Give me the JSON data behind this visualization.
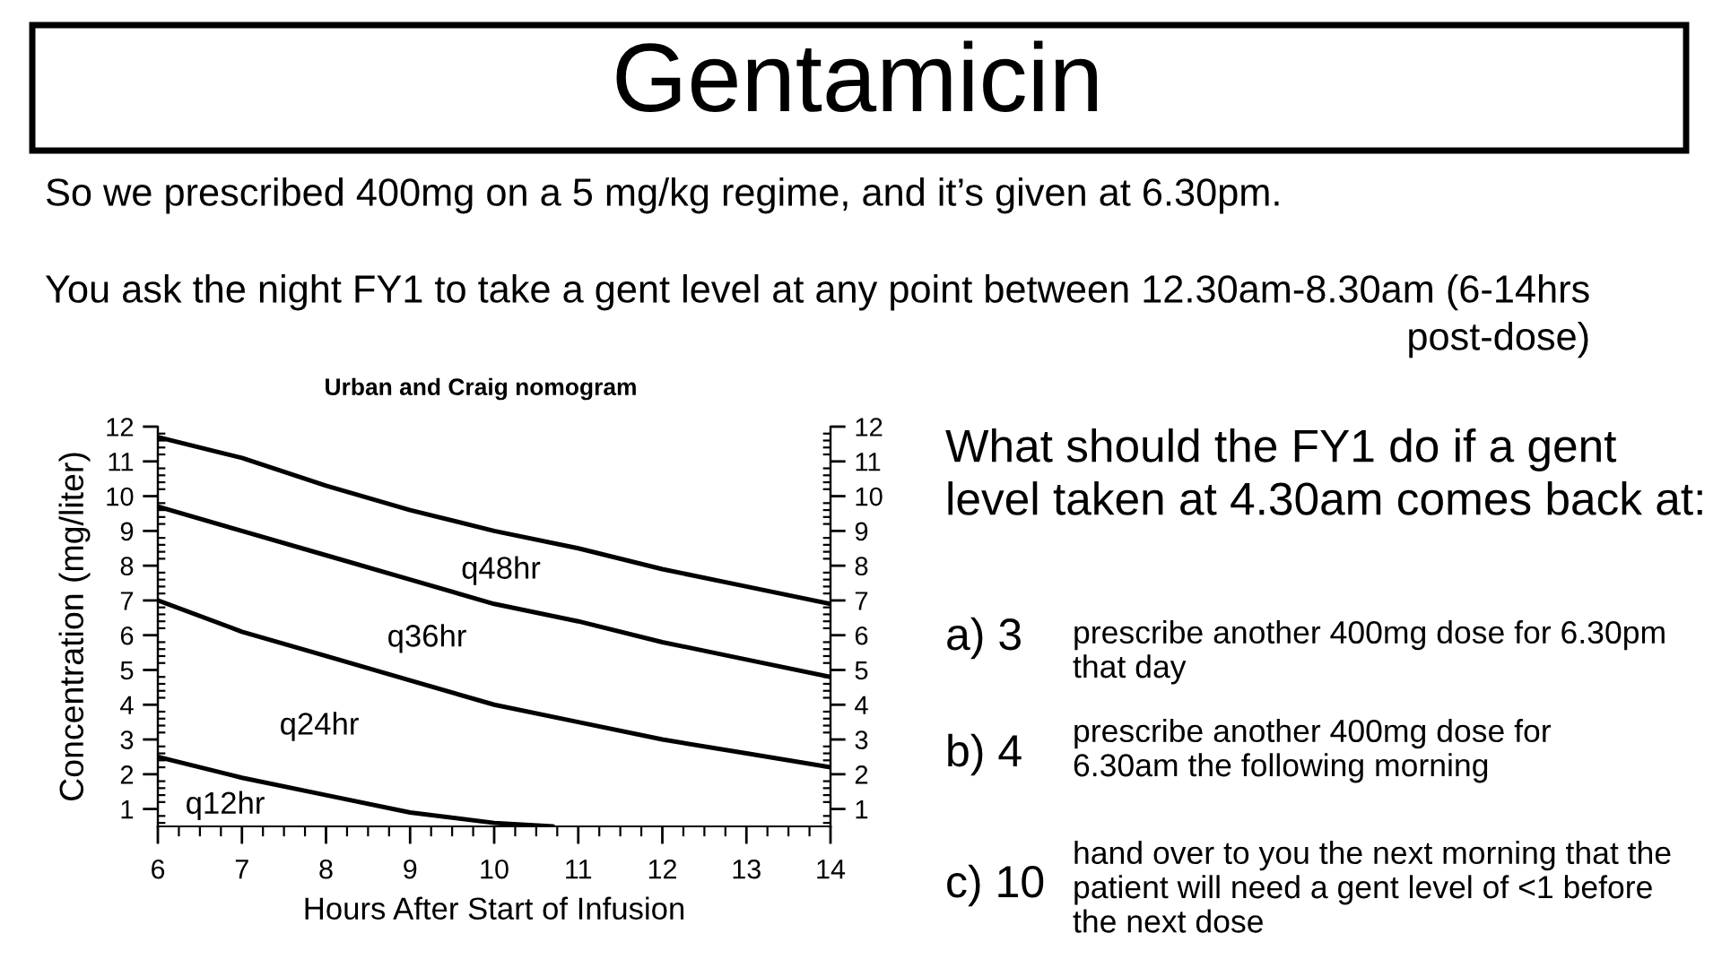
{
  "chart_data": {
    "type": "line",
    "title": "Gentamicin",
    "subtitle": "Urban and Craig nomogram",
    "xlabel": "Hours After Start of Infusion",
    "ylabel": "Concentration (mg/liter)",
    "x": [
      6,
      7,
      8,
      9,
      10,
      11,
      12,
      13,
      14
    ],
    "series": [
      {
        "color": "#000000",
        "values": [
          11.7,
          11.1,
          10.3,
          9.6,
          9.0,
          8.5,
          7.9,
          7.4,
          6.9
        ]
      },
      {
        "color": "#000000",
        "values": [
          9.7,
          9.0,
          8.3,
          7.6,
          6.9,
          6.4,
          5.8,
          5.3,
          4.8
        ]
      },
      {
        "color": "#000000",
        "values": [
          7.0,
          6.1,
          5.4,
          4.7,
          4.0,
          3.5,
          3.0,
          2.6,
          2.2
        ]
      },
      {
        "color": "#000000",
        "x": [
          6,
          7,
          8,
          9,
          10,
          10.7
        ],
        "values": [
          2.5,
          1.9,
          1.4,
          0.9,
          0.6,
          0.5
        ]
      }
    ],
    "xlim": [
      6,
      14
    ],
    "xticks": [
      6,
      7,
      8,
      9,
      10,
      11,
      12,
      13,
      14
    ],
    "ylim": [
      0.5,
      12
    ],
    "yticks": [
      1,
      2,
      3,
      4,
      5,
      6,
      7,
      8,
      9,
      10,
      11,
      12
    ],
    "y2lim": [
      0.5,
      12
    ],
    "y2ticks": [
      1,
      2,
      3,
      4,
      5,
      6,
      7,
      8,
      9,
      10,
      11,
      12
    ],
    "grid": false,
    "line_style": "solid",
    "annotations": [
      "So we prescribed 400mg on a 5 mg/kg regime, and it’s given at 6.30pm.",
      "You ask the night FY1 to take a gent level at any point between 12.30am-8.30am (6-14hrs post-dose)",
      "What should the FY1 do if a gent level taken at 4.30am comes back at:",
      "a) 3",
      "prescribe another 400mg dose for 6.30pm that day",
      "b) 4",
      "prescribe another 400mg dose for 6.30am the following morning",
      "c) 10",
      "hand over to you the next morning that the patient will need a gent level of <1 before the next dose",
      "q48hr",
      "q36hr",
      "q24hr",
      "q12hr"
    ]
  }
}
